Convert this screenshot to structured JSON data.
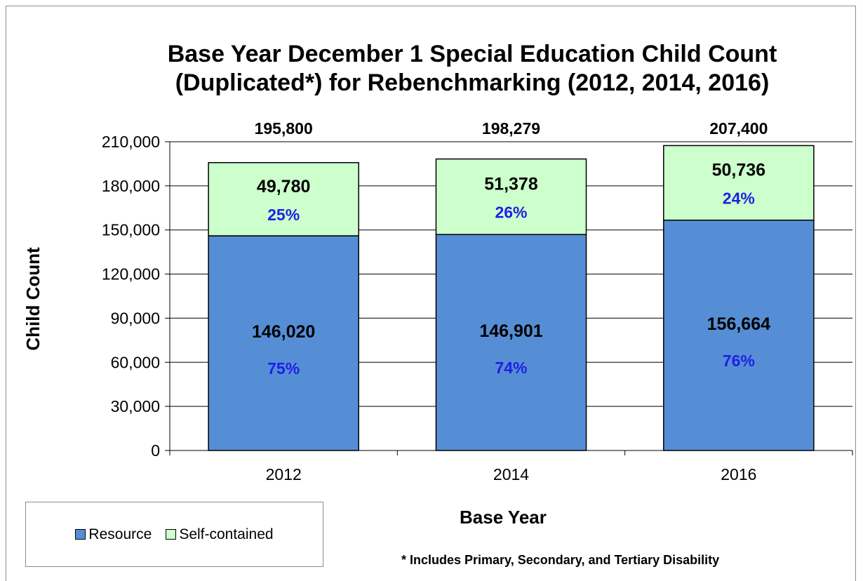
{
  "chart_data": {
    "type": "bar",
    "stacked": true,
    "title_line1": "Base Year December 1 Special Education Child Count",
    "title_line2": "(Duplicated*) for Rebenchmarking (2012, 2014, 2016)",
    "xlabel": "Base Year",
    "ylabel": "Child Count",
    "ylim": [
      0,
      210000
    ],
    "yticks": [
      "0",
      "30,000",
      "60,000",
      "90,000",
      "120,000",
      "150,000",
      "180,000",
      "210,000"
    ],
    "grid": true,
    "legend_position": "bottom-left",
    "categories": [
      "2012",
      "2014",
      "2016"
    ],
    "totals": [
      "195,800",
      "198,279",
      "207,400"
    ],
    "series": [
      {
        "name": "Resource",
        "color": "#558ed5",
        "values": [
          146020,
          146901,
          156664
        ],
        "value_labels": [
          "146,020",
          "146,901",
          "156,664"
        ],
        "percent_labels": [
          "75%",
          "74%",
          "76%"
        ]
      },
      {
        "name": "Self-contained",
        "color": "#ccffcc",
        "values": [
          49780,
          51378,
          50736
        ],
        "value_labels": [
          "49,780",
          "51,378",
          "50,736"
        ],
        "percent_labels": [
          "25%",
          "26%",
          "24%"
        ]
      }
    ],
    "footnote": "* Includes Primary, Secondary, and Tertiary Disability",
    "percent_label_color": "#1f1fe6"
  }
}
